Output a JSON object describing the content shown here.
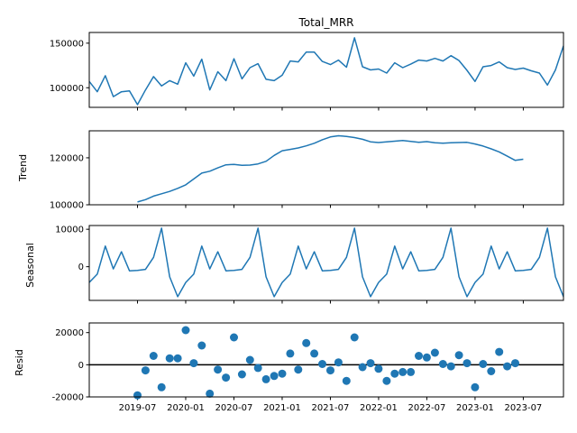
{
  "chart_data": {
    "type": "line",
    "title": "Total_MRR",
    "x_dates": [
      "2019-01",
      "2019-02",
      "2019-03",
      "2019-04",
      "2019-05",
      "2019-06",
      "2019-07",
      "2019-08",
      "2019-09",
      "2019-10",
      "2019-11",
      "2019-12",
      "2020-01",
      "2020-02",
      "2020-03",
      "2020-04",
      "2020-05",
      "2020-06",
      "2020-07",
      "2020-08",
      "2020-09",
      "2020-10",
      "2020-11",
      "2020-12",
      "2021-01",
      "2021-02",
      "2021-03",
      "2021-04",
      "2021-05",
      "2021-06",
      "2021-07",
      "2021-08",
      "2021-09",
      "2021-10",
      "2021-11",
      "2021-12",
      "2022-01",
      "2022-02",
      "2022-03",
      "2022-04",
      "2022-05",
      "2022-06",
      "2022-07",
      "2022-08",
      "2022-09",
      "2022-10",
      "2022-11",
      "2022-12",
      "2023-01",
      "2023-02",
      "2023-03",
      "2023-04",
      "2023-05",
      "2023-06",
      "2023-07",
      "2023-08",
      "2023-09",
      "2023-10",
      "2023-11",
      "2023-12"
    ],
    "xlim": [
      "2019-01",
      "2023-12"
    ],
    "x_ticks": [
      "2019-07",
      "2020-01",
      "2020-07",
      "2021-01",
      "2021-07",
      "2022-01",
      "2022-07",
      "2023-01",
      "2023-07"
    ],
    "panels": [
      {
        "name": "observed",
        "ylabel": "",
        "kind": "line",
        "ylim": [
          78000,
          162000
        ],
        "yticks": [
          100000,
          150000
        ],
        "values": [
          107000,
          95500,
          113500,
          90000,
          95500,
          96500,
          81000,
          97500,
          112500,
          102000,
          108000,
          104000,
          128000,
          113000,
          132000,
          97500,
          118000,
          108000,
          132500,
          110000,
          122500,
          127000,
          109500,
          108000,
          114000,
          130000,
          129000,
          140000,
          140000,
          129500,
          126000,
          131000,
          123000,
          156000,
          123500,
          120000,
          121000,
          116500,
          128000,
          122500,
          126500,
          131000,
          130000,
          133000,
          130000,
          136000,
          130500,
          119500,
          107000,
          123500,
          125000,
          129000,
          122500,
          120500,
          122000,
          119000,
          116500,
          103000,
          120000,
          147000
        ]
      },
      {
        "name": "trend",
        "ylabel": "Trend",
        "kind": "line",
        "ylim": [
          100000,
          131500
        ],
        "yticks": [
          100000,
          120000
        ],
        "values": [
          null,
          null,
          null,
          null,
          null,
          null,
          101200,
          102200,
          103700,
          104700,
          105700,
          107000,
          108500,
          111000,
          113500,
          114300,
          115700,
          117000,
          117200,
          116800,
          116900,
          117400,
          118500,
          121000,
          123000,
          123600,
          124200,
          125100,
          126200,
          127700,
          128900,
          129400,
          129100,
          128600,
          127900,
          126800,
          126500,
          126800,
          127100,
          127400,
          127000,
          126600,
          126900,
          126400,
          126200,
          126400,
          126500,
          126600,
          125900,
          125000,
          123800,
          122500,
          120700,
          118900,
          119400,
          null,
          null,
          null,
          null,
          null
        ]
      },
      {
        "name": "seasonal",
        "ylabel": "Seasonal",
        "kind": "line",
        "ylim": [
          -9000,
          11000
        ],
        "yticks": [
          0,
          10000
        ],
        "values": [
          -4200,
          -2000,
          5500,
          -600,
          4000,
          -1100,
          -1000,
          -700,
          2500,
          10300,
          -2700,
          -8000,
          -4200,
          -2000,
          5500,
          -600,
          4000,
          -1100,
          -1000,
          -700,
          2500,
          10300,
          -2700,
          -8000,
          -4200,
          -2000,
          5500,
          -600,
          4000,
          -1100,
          -1000,
          -700,
          2500,
          10300,
          -2700,
          -8000,
          -4200,
          -2000,
          5500,
          -600,
          4000,
          -1100,
          -1000,
          -700,
          2500,
          10300,
          -2700,
          -8000,
          -4200,
          -2000,
          5500,
          -600,
          4000,
          -1100,
          -1000,
          -700,
          2500,
          10300,
          -2700,
          -8000
        ]
      },
      {
        "name": "resid",
        "ylabel": "Resid",
        "kind": "scatter",
        "ylim": [
          -20000,
          26000
        ],
        "yticks": [
          -20000,
          0,
          20000
        ],
        "zero_line": true,
        "values": [
          null,
          null,
          null,
          null,
          null,
          null,
          -19000,
          -3500,
          5500,
          -14000,
          4000,
          4000,
          21500,
          1000,
          12000,
          -18000,
          -3000,
          -8000,
          17000,
          -6000,
          3000,
          -2000,
          -9000,
          -7000,
          -5500,
          7000,
          -3000,
          13500,
          7000,
          500,
          -3500,
          1500,
          -10000,
          17000,
          -1500,
          1000,
          -2500,
          -10000,
          -5500,
          -4500,
          -4500,
          5500,
          4500,
          7500,
          500,
          -1000,
          6000,
          1000,
          -14000,
          500,
          -4000,
          8000,
          -1000,
          1000,
          null,
          null,
          null,
          null,
          null,
          null
        ]
      }
    ]
  }
}
